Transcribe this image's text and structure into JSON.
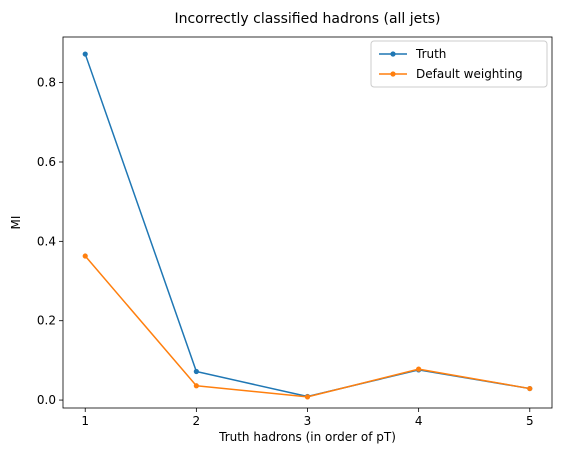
{
  "chart_data": {
    "type": "line",
    "title": "Incorrectly classified hadrons (all jets)",
    "xlabel": "Truth hadrons (in order of pT)",
    "ylabel": "MI",
    "x": [
      1,
      2,
      3,
      4,
      5
    ],
    "xlim": [
      0.8,
      5.2
    ],
    "ylim": [
      -0.02,
      0.915
    ],
    "xticks": [
      1,
      2,
      3,
      4,
      5
    ],
    "yticks": [
      0.0,
      0.2,
      0.4,
      0.6,
      0.8
    ],
    "ytick_labels": [
      "0.0",
      "0.2",
      "0.4",
      "0.6",
      "0.8"
    ],
    "grid": false,
    "legend_position": "top-right",
    "series": [
      {
        "name": "Truth",
        "color": "#1f77b4",
        "values": [
          0.872,
          0.072,
          0.009,
          0.076,
          0.029
        ]
      },
      {
        "name": "Default weighting",
        "color": "#ff7f0e",
        "values": [
          0.363,
          0.036,
          0.008,
          0.078,
          0.029
        ]
      }
    ]
  }
}
